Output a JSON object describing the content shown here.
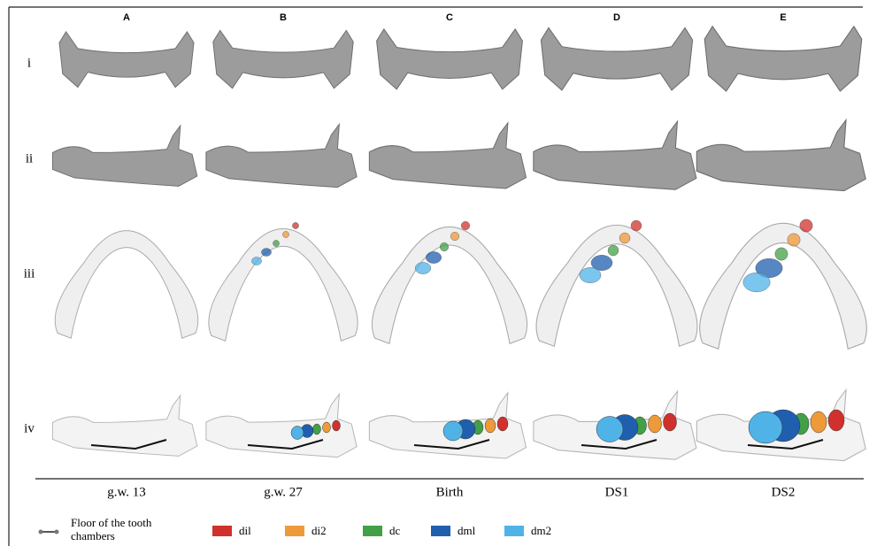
{
  "columns": [
    {
      "letter": "A",
      "stage": "g.w. 13"
    },
    {
      "letter": "B",
      "stage": "g.w. 27"
    },
    {
      "letter": "C",
      "stage": "Birth"
    },
    {
      "letter": "D",
      "stage": "DS1"
    },
    {
      "letter": "E",
      "stage": "DS2"
    }
  ],
  "rows": [
    "i",
    "ii",
    "iii",
    "iv"
  ],
  "legend": {
    "floor": "Floor of the tooth chambers",
    "items": [
      {
        "label": "dil",
        "color": "#d0312d"
      },
      {
        "label": "di2",
        "color": "#ef9a3a"
      },
      {
        "label": "dc",
        "color": "#43a047"
      },
      {
        "label": "dml",
        "color": "#1f5fae"
      },
      {
        "label": "dm2",
        "color": "#4fb3e8"
      }
    ]
  }
}
